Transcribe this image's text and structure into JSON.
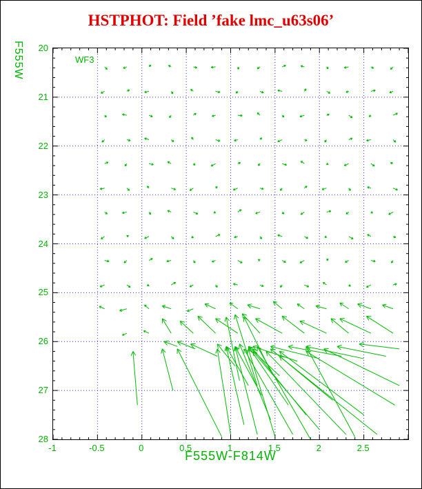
{
  "colors": {
    "red": "#e00000",
    "green": "#00b400",
    "vector_green": "#00bb00",
    "grid_blue": "#2a2aee",
    "black": "#000000",
    "background": "#ffffff"
  },
  "chart_data": {
    "type": "scatter",
    "subtype": "vector_field",
    "title": "HSTPHOT: Field ’fake lmc_u63s06’",
    "xlabel": "F555W-F814W",
    "ylabel": "F555W",
    "annotation": "WF3",
    "xlim": [
      -1,
      3.0
    ],
    "ylim": [
      28,
      20
    ],
    "x_ticks": {
      "values": [
        -1,
        -0.5,
        0,
        0.5,
        1,
        1.5,
        2,
        2.5
      ],
      "labels": [
        "-1",
        "-0.5",
        "0",
        "0.5",
        "1",
        "1.5",
        "2",
        "2.5"
      ],
      "major_step": 0.5,
      "minor_step": 0.1
    },
    "y_ticks": {
      "values": [
        20,
        21,
        22,
        23,
        24,
        25,
        26,
        27,
        28
      ],
      "labels": [
        "20",
        "21",
        "22",
        "23",
        "24",
        "25",
        "26",
        "27",
        "28"
      ],
      "major_step": 1,
      "minor_step": 0.2
    },
    "grid": {
      "x_lines": [
        -0.5,
        0,
        0.5,
        1,
        1.5,
        2,
        2.5
      ],
      "y_lines": [
        21,
        22,
        23,
        24,
        25,
        26,
        27
      ],
      "style": "dotted"
    },
    "vector_grid": {
      "xs": [
        -0.42,
        -0.17,
        0.08,
        0.33,
        0.58,
        0.83,
        1.08,
        1.33,
        1.58,
        1.83,
        2.08,
        2.33,
        2.58,
        2.83
      ],
      "mags": [
        20.38,
        20.88,
        21.37,
        21.87,
        22.36,
        22.86,
        23.35,
        23.85,
        24.34,
        24.84,
        25.33
      ],
      "offsets": [
        [
          [
            0.03,
            0.05
          ],
          [
            -0.04,
            0.03
          ],
          [
            0.02,
            -0.04
          ],
          [
            -0.03,
            -0.03
          ],
          [
            0.04,
            0.02
          ],
          [
            -0.05,
            0.01
          ],
          [
            0.01,
            0.05
          ],
          [
            -0.03,
            0.04
          ],
          [
            0.04,
            -0.03
          ],
          [
            -0.04,
            -0.02
          ],
          [
            0.02,
            0.04
          ],
          [
            -0.05,
            0.02
          ],
          [
            0.03,
            0.03
          ],
          [
            -0.03,
            0.05
          ]
        ],
        [
          [
            -0.04,
            0.04
          ],
          [
            0.03,
            -0.03
          ],
          [
            -0.05,
            0.02
          ],
          [
            0.02,
            0.05
          ],
          [
            -0.03,
            -0.04
          ],
          [
            0.05,
            0.02
          ],
          [
            -0.02,
            0.04
          ],
          [
            0.04,
            0.03
          ],
          [
            -0.05,
            -0.02
          ],
          [
            0.02,
            -0.05
          ],
          [
            0.04,
            0.04
          ],
          [
            -0.03,
            0.02
          ],
          [
            0.05,
            -0.02
          ],
          [
            -0.04,
            0.03
          ]
        ],
        [
          [
            0.02,
            0.04
          ],
          [
            -0.05,
            -0.02
          ],
          [
            0.04,
            0.03
          ],
          [
            -0.02,
            0.05
          ],
          [
            0.03,
            -0.04
          ],
          [
            -0.04,
            0.02
          ],
          [
            0.05,
            0.01
          ],
          [
            -0.03,
            -0.05
          ],
          [
            0.02,
            0.04
          ],
          [
            -0.05,
            0.03
          ],
          [
            0.03,
            -0.02
          ],
          [
            0.04,
            0.05
          ],
          [
            -0.02,
            0.03
          ],
          [
            0.05,
            -0.04
          ]
        ],
        [
          [
            -0.03,
            0.05
          ],
          [
            0.04,
            0.02
          ],
          [
            -0.05,
            -0.03
          ],
          [
            0.03,
            0.04
          ],
          [
            -0.02,
            -0.05
          ],
          [
            0.05,
            0.03
          ],
          [
            -0.04,
            0.02
          ],
          [
            0.02,
            -0.04
          ],
          [
            -0.05,
            0.04
          ],
          [
            0.03,
            0.02
          ],
          [
            -0.02,
            0.05
          ],
          [
            0.04,
            -0.03
          ],
          [
            -0.05,
            0.02
          ],
          [
            0.03,
            0.05
          ]
        ],
        [
          [
            0.04,
            -0.03
          ],
          [
            -0.02,
            0.05
          ],
          [
            0.05,
            0.02
          ],
          [
            -0.04,
            -0.04
          ],
          [
            0.02,
            0.03
          ],
          [
            -0.05,
            0.05
          ],
          [
            0.03,
            -0.02
          ],
          [
            -0.02,
            0.04
          ],
          [
            0.05,
            0.03
          ],
          [
            -0.04,
            -0.05
          ],
          [
            0.02,
            0.02
          ],
          [
            -0.05,
            0.04
          ],
          [
            0.04,
            0.05
          ],
          [
            -0.03,
            -0.02
          ]
        ],
        [
          [
            -0.05,
            0.02
          ],
          [
            0.03,
            0.05
          ],
          [
            -0.02,
            -0.04
          ],
          [
            0.05,
            0.03
          ],
          [
            -0.04,
            0.05
          ],
          [
            0.02,
            -0.03
          ],
          [
            -0.05,
            0.04
          ],
          [
            0.04,
            0.02
          ],
          [
            -0.02,
            0.05
          ],
          [
            0.03,
            -0.04
          ],
          [
            -0.05,
            0.03
          ],
          [
            0.02,
            0.05
          ],
          [
            -0.04,
            -0.02
          ],
          [
            0.05,
            0.04
          ]
        ],
        [
          [
            0.03,
            0.04
          ],
          [
            -0.05,
            0.02
          ],
          [
            0.02,
            0.05
          ],
          [
            -0.04,
            -0.03
          ],
          [
            0.05,
            0.04
          ],
          [
            -0.02,
            0.02
          ],
          [
            0.04,
            -0.05
          ],
          [
            -0.05,
            0.03
          ],
          [
            0.02,
            0.04
          ],
          [
            -0.04,
            0.05
          ],
          [
            0.05,
            -0.02
          ],
          [
            -0.03,
            0.04
          ],
          [
            0.02,
            0.02
          ],
          [
            -0.05,
            0.05
          ]
        ],
        [
          [
            -0.04,
            0.05
          ],
          [
            0.02,
            -0.02
          ],
          [
            -0.05,
            0.04
          ],
          [
            0.03,
            0.05
          ],
          [
            -0.02,
            0.03
          ],
          [
            0.05,
            -0.04
          ],
          [
            -0.04,
            0.02
          ],
          [
            0.02,
            0.05
          ],
          [
            -0.05,
            -0.03
          ],
          [
            0.04,
            0.04
          ],
          [
            -0.02,
            0.02
          ],
          [
            0.05,
            0.05
          ],
          [
            -0.04,
            -0.04
          ],
          [
            0.03,
            0.02
          ]
        ],
        [
          [
            0.05,
            0.02
          ],
          [
            -0.03,
            0.05
          ],
          [
            0.04,
            -0.04
          ],
          [
            -0.05,
            0.02
          ],
          [
            0.02,
            0.05
          ],
          [
            -0.04,
            0.03
          ],
          [
            0.05,
            0.05
          ],
          [
            -0.02,
            -0.02
          ],
          [
            0.04,
            0.04
          ],
          [
            -0.05,
            0.05
          ],
          [
            0.02,
            -0.03
          ],
          [
            -0.04,
            0.04
          ],
          [
            0.05,
            0.02
          ],
          [
            -0.02,
            0.05
          ]
        ],
        [
          [
            -0.05,
            0.04
          ],
          [
            0.04,
            0.05
          ],
          [
            -0.02,
            0.02
          ],
          [
            0.05,
            -0.05
          ],
          [
            -0.04,
            0.04
          ],
          [
            0.02,
            0.05
          ],
          [
            -0.05,
            -0.02
          ],
          [
            0.04,
            0.03
          ],
          [
            -0.02,
            0.05
          ],
          [
            0.05,
            0.04
          ],
          [
            -0.04,
            -0.05
          ],
          [
            0.02,
            0.03
          ],
          [
            -0.05,
            0.05
          ],
          [
            0.04,
            -0.02
          ]
        ],
        [
          [
            -0.06,
            -0.05
          ],
          [
            -0.08,
            0.04
          ],
          [
            -0.05,
            -0.08
          ],
          [
            -0.1,
            -0.06
          ],
          [
            -0.07,
            0.05
          ],
          [
            -0.12,
            -0.1
          ],
          [
            -0.09,
            -0.12
          ],
          [
            -0.14,
            -0.08
          ],
          [
            -0.1,
            -0.15
          ],
          [
            -0.08,
            -0.1
          ],
          [
            -0.12,
            -0.06
          ],
          [
            -0.1,
            -0.12
          ],
          [
            -0.15,
            -0.1
          ],
          [
            -0.12,
            -0.08
          ]
        ]
      ]
    },
    "extra_vectors": [
      [
        -0.17,
        25.83,
        -0.05,
        0.04
      ],
      [
        0.08,
        25.83,
        -0.06,
        -0.05
      ],
      [
        0.33,
        25.83,
        -0.1,
        -0.3
      ],
      [
        0.58,
        25.83,
        -0.15,
        -0.25
      ],
      [
        0.83,
        25.83,
        -0.2,
        -0.35
      ],
      [
        1.08,
        25.83,
        -0.25,
        -0.3
      ],
      [
        1.33,
        25.83,
        -0.2,
        -0.4
      ],
      [
        1.58,
        25.83,
        -0.3,
        -0.3
      ],
      [
        1.83,
        25.83,
        -0.25,
        -0.35
      ],
      [
        2.08,
        25.83,
        -0.3,
        -0.25
      ],
      [
        2.33,
        25.83,
        -0.2,
        -0.3
      ],
      [
        2.58,
        25.83,
        -0.35,
        -0.3
      ],
      [
        2.83,
        25.83,
        -0.3,
        -0.35
      ],
      [
        0.4,
        26.1,
        -0.15,
        -0.1
      ],
      [
        0.6,
        26.15,
        -0.2,
        -0.15
      ],
      [
        0.85,
        26.3,
        -0.3,
        -0.25
      ],
      [
        1.05,
        26.5,
        -0.2,
        -0.45
      ],
      [
        1.1,
        26.8,
        -0.15,
        -1.3
      ],
      [
        1.2,
        26.9,
        -0.25,
        -0.8
      ],
      [
        1.3,
        26.9,
        -0.25,
        -1.45
      ],
      [
        1.35,
        27.1,
        -0.3,
        -1.0
      ],
      [
        1.45,
        26.6,
        -0.3,
        -1.1
      ],
      [
        1.55,
        26.7,
        -0.35,
        -0.6
      ],
      [
        1.75,
        26.4,
        -0.5,
        -0.3
      ],
      [
        2.0,
        26.35,
        -0.55,
        -0.25
      ],
      [
        2.25,
        26.3,
        -0.6,
        -0.2
      ],
      [
        2.5,
        26.35,
        -0.65,
        -0.25
      ],
      [
        2.75,
        26.3,
        -0.55,
        -0.2
      ],
      [
        2.9,
        26.15,
        -0.45,
        -0.1
      ],
      [
        -0.05,
        27.3,
        -0.05,
        -1.1
      ],
      [
        0.35,
        27.0,
        -0.12,
        -0.85
      ],
      [
        0.9,
        27.95,
        -0.5,
        -1.8
      ],
      [
        1.0,
        27.9,
        -0.15,
        -1.75
      ],
      [
        1.15,
        27.7,
        -0.2,
        -1.6
      ],
      [
        1.3,
        27.9,
        -0.25,
        -1.8
      ],
      [
        1.45,
        27.6,
        -0.35,
        -1.55
      ],
      [
        1.5,
        27.95,
        -0.3,
        -1.8
      ],
      [
        1.65,
        27.3,
        -0.45,
        -1.2
      ],
      [
        1.7,
        27.9,
        -0.55,
        -1.75
      ],
      [
        1.85,
        27.5,
        -0.6,
        -1.35
      ],
      [
        1.9,
        28.0,
        -0.6,
        -1.9
      ],
      [
        2.0,
        27.8,
        -0.75,
        -1.6
      ],
      [
        2.15,
        27.2,
        -0.7,
        -1.05
      ],
      [
        2.3,
        27.9,
        -0.9,
        -1.7
      ],
      [
        2.4,
        27.95,
        -0.55,
        -1.85
      ],
      [
        2.5,
        27.5,
        -0.95,
        -1.3
      ],
      [
        2.65,
        27.9,
        -1.1,
        -1.6
      ],
      [
        2.85,
        27.3,
        -1.0,
        -1.1
      ],
      [
        2.9,
        26.9,
        -0.85,
        -0.75
      ]
    ]
  }
}
